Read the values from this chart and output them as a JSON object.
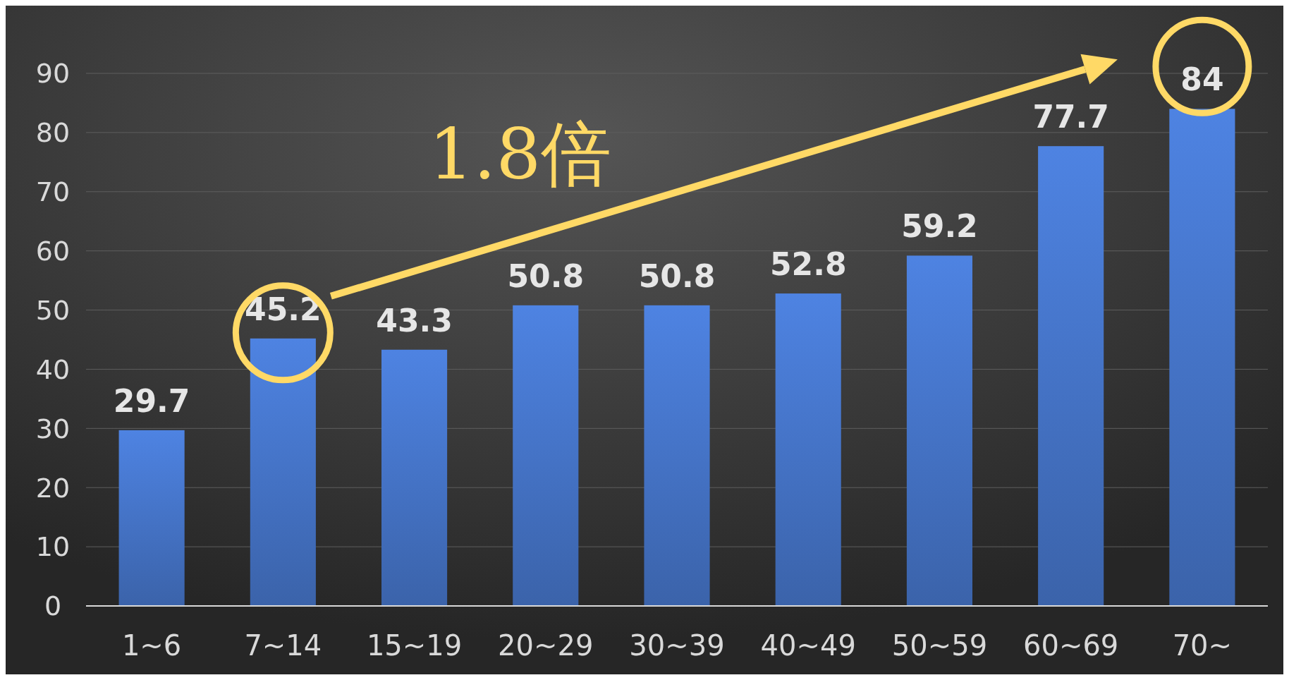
{
  "chart_data": {
    "type": "bar",
    "categories": [
      "1~6",
      "7~14",
      "15~19",
      "20~29",
      "30~39",
      "40~49",
      "50~59",
      "60~69",
      "70~"
    ],
    "values": [
      29.7,
      45.2,
      43.3,
      50.8,
      50.8,
      52.8,
      59.2,
      77.7,
      84
    ],
    "color": "#4472c4",
    "ylim": [
      0,
      90
    ],
    "yticks": [
      0,
      10,
      20,
      30,
      40,
      50,
      60,
      70,
      80,
      90
    ],
    "grid": "y",
    "data_labels": true,
    "annotations": [
      "1.8倍"
    ]
  }
}
